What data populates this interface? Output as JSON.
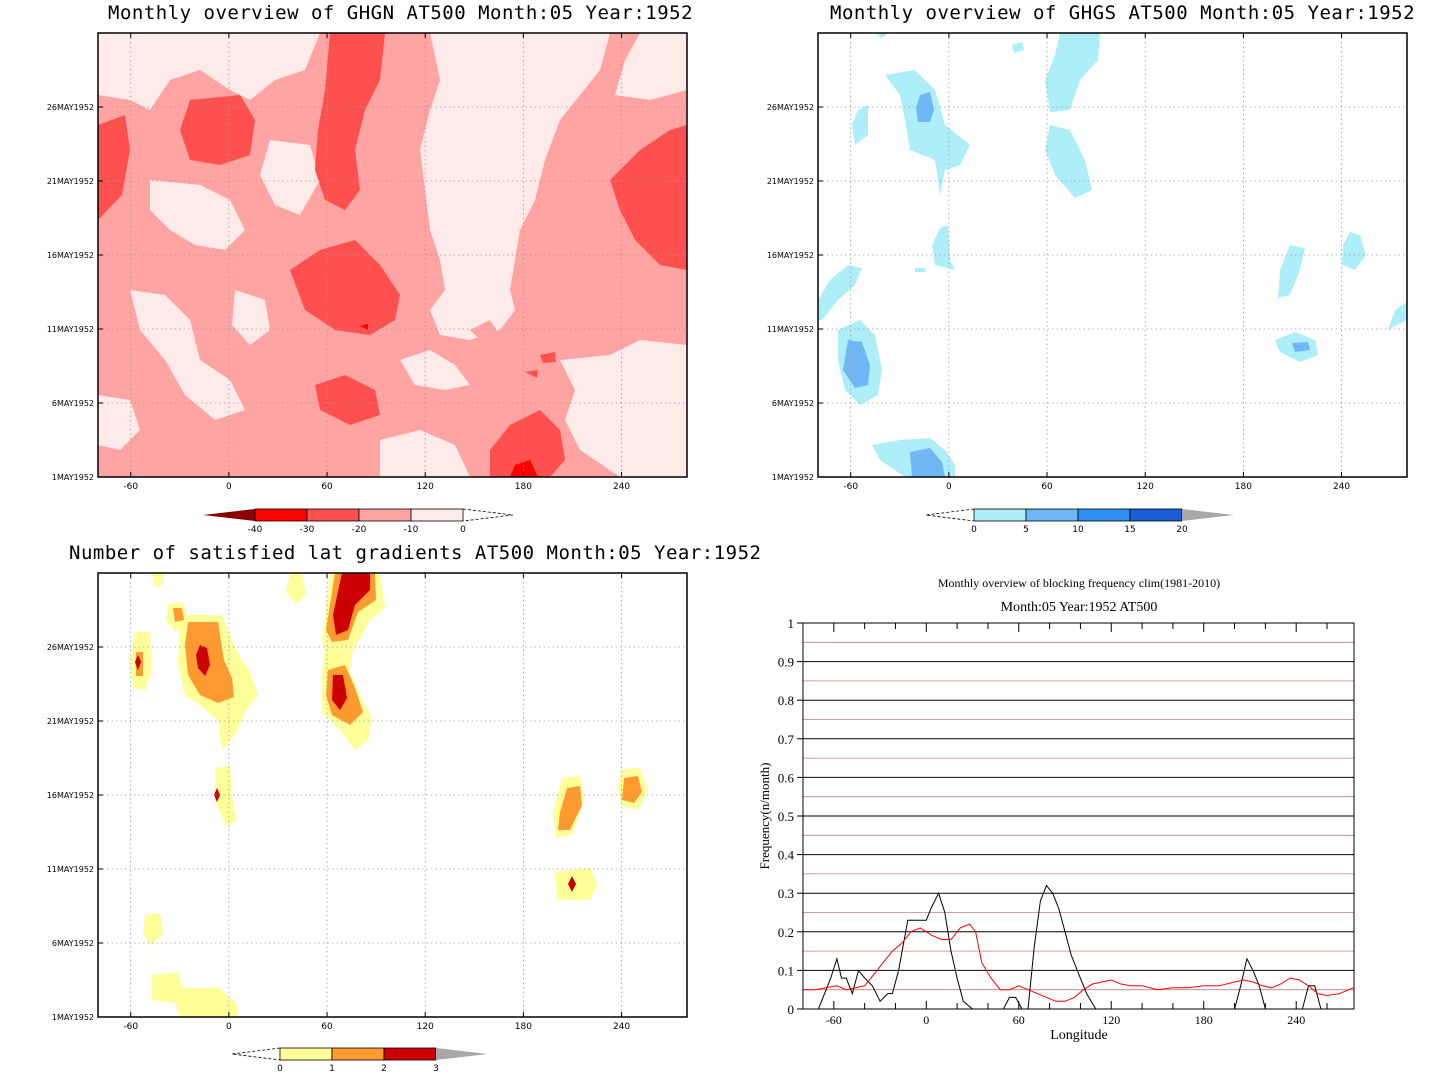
{
  "colors": {
    "ghgn": [
      "#ffeaea",
      "#ffa3a3",
      "#ff5050",
      "#ff0000",
      "#8a0000"
    ],
    "ghgs": [
      "#aeeef8",
      "#6fb7f5",
      "#2f8ff0",
      "#1a5fd8",
      "#a8a8a8"
    ],
    "lat": [
      "#ffff99",
      "#ff9a30",
      "#cc0000",
      "#a8a8a8"
    ],
    "freq_black": "#000000",
    "freq_red": "#ff0000"
  },
  "chart_data": [
    {
      "type": "heatmap",
      "title": "Monthly overview of GHGN AT500 Month:05 Year:1952",
      "x_ticks": [
        "-60",
        "0",
        "60",
        "120",
        "180",
        "240"
      ],
      "y_ticks": [
        "1MAY1952",
        "6MAY1952",
        "11MAY1952",
        "16MAY1952",
        "21MAY1952",
        "26MAY1952"
      ],
      "colorbar": [
        "-40",
        "-30",
        "-20",
        "-10",
        "0"
      ]
    },
    {
      "type": "heatmap",
      "title": "Monthly overview of GHGS AT500 Month:05 Year:1952",
      "x_ticks": [
        "-60",
        "0",
        "60",
        "120",
        "180",
        "240"
      ],
      "y_ticks": [
        "1MAY1952",
        "6MAY1952",
        "11MAY1952",
        "16MAY1952",
        "21MAY1952",
        "26MAY1952"
      ],
      "colorbar": [
        "0",
        "5",
        "10",
        "15",
        "20"
      ]
    },
    {
      "type": "heatmap",
      "title": "Number of satisfied lat gradients AT500 Month:05 Year:1952",
      "x_ticks": [
        "-60",
        "0",
        "60",
        "120",
        "180",
        "240"
      ],
      "y_ticks": [
        "1MAY1952",
        "6MAY1952",
        "11MAY1952",
        "16MAY1952",
        "21MAY1952",
        "26MAY1952"
      ],
      "colorbar": [
        "0",
        "1",
        "2",
        "3"
      ]
    },
    {
      "type": "line",
      "title": "Monthly overview of blocking frequency clim(1981-2010)",
      "subtitle": "Month:05 Year:1952  AT500",
      "xlabel": "Longitude",
      "ylabel": "Frequency(n/month)",
      "x_ticks": [
        "-60",
        "0",
        "60",
        "120",
        "180",
        "240"
      ],
      "y_ticks": [
        "0",
        "0.1",
        "0.2",
        "0.3",
        "0.4",
        "0.5",
        "0.6",
        "0.7",
        "0.8",
        "0.9",
        "1"
      ],
      "xlim": [
        -80,
        277.5
      ],
      "ylim": [
        0,
        1
      ],
      "series": [
        {
          "color": "black",
          "x": [
            -80,
            -70,
            -62,
            -58,
            -55,
            -52,
            -48,
            -44,
            -40,
            -35,
            -30,
            -25,
            -22,
            -18,
            -12,
            -6,
            -3,
            0,
            3,
            8,
            12,
            16,
            20,
            24,
            30,
            36,
            40,
            46,
            50,
            54,
            58,
            62,
            66,
            70,
            74,
            78,
            82,
            86,
            90,
            94,
            98,
            104,
            110,
            120,
            130,
            150,
            170,
            190,
            200,
            204,
            208,
            212,
            216,
            220,
            226,
            232,
            236,
            240,
            244,
            248,
            252,
            256,
            260,
            270,
            277
          ],
          "y": [
            0,
            0,
            0.08,
            0.13,
            0.08,
            0.08,
            0.04,
            0.1,
            0.08,
            0.06,
            0.02,
            0.04,
            0.04,
            0.1,
            0.23,
            0.23,
            0.23,
            0.23,
            0.26,
            0.3,
            0.25,
            0.15,
            0.08,
            0.02,
            0,
            0,
            0,
            0,
            0,
            0.03,
            0.03,
            0,
            0,
            0.16,
            0.28,
            0.32,
            0.3,
            0.26,
            0.2,
            0.14,
            0.1,
            0.04,
            0,
            0,
            0,
            0,
            0,
            0,
            0,
            0.06,
            0.13,
            0.1,
            0.06,
            0,
            0,
            0,
            0,
            0,
            0,
            0.06,
            0.06,
            0,
            0,
            0,
            0
          ]
        },
        {
          "color": "red",
          "x": [
            -80,
            -72,
            -65,
            -58,
            -52,
            -46,
            -40,
            -34,
            -28,
            -22,
            -16,
            -10,
            -4,
            0,
            4,
            10,
            16,
            22,
            28,
            32,
            36,
            42,
            48,
            54,
            60,
            66,
            72,
            78,
            84,
            90,
            96,
            102,
            108,
            114,
            120,
            126,
            132,
            140,
            150,
            160,
            170,
            180,
            190,
            200,
            206,
            212,
            218,
            224,
            230,
            236,
            242,
            248,
            254,
            260,
            268,
            277
          ],
          "y": [
            0.05,
            0.05,
            0.055,
            0.06,
            0.05,
            0.055,
            0.06,
            0.09,
            0.12,
            0.15,
            0.17,
            0.2,
            0.21,
            0.2,
            0.19,
            0.18,
            0.18,
            0.21,
            0.22,
            0.2,
            0.12,
            0.08,
            0.05,
            0.05,
            0.06,
            0.05,
            0.04,
            0.03,
            0.02,
            0.02,
            0.03,
            0.05,
            0.065,
            0.07,
            0.075,
            0.065,
            0.06,
            0.06,
            0.05,
            0.055,
            0.055,
            0.06,
            0.06,
            0.07,
            0.075,
            0.07,
            0.06,
            0.055,
            0.065,
            0.08,
            0.075,
            0.06,
            0.04,
            0.035,
            0.04,
            0.055
          ]
        }
      ]
    }
  ]
}
